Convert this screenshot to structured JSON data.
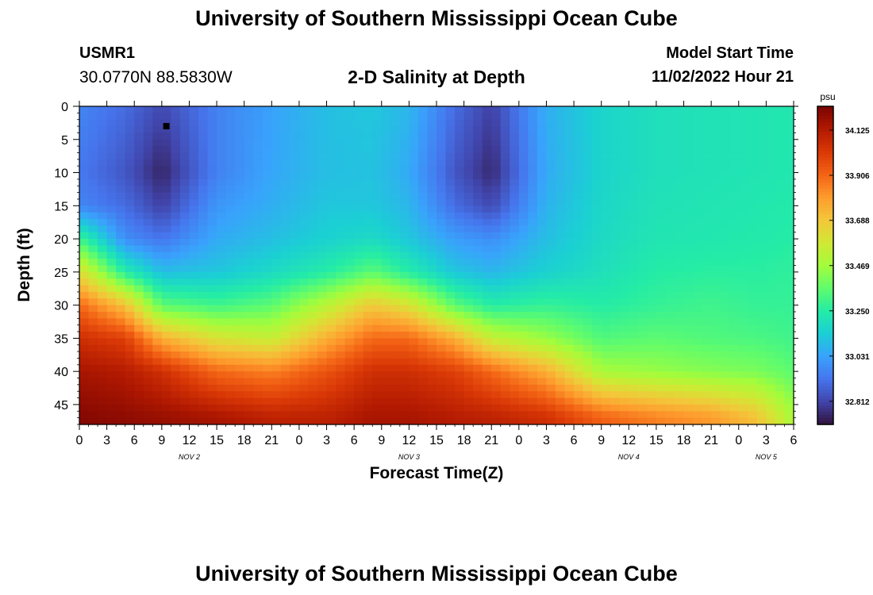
{
  "page": {
    "title": "University of Southern Mississippi Ocean Cube",
    "footer_title": "University of Southern Mississippi Ocean Cube",
    "station_id": "USMR1",
    "coordinates": "30.0770N  88.5830W",
    "subtitle": "2-D Salinity at Depth",
    "model_start_label": "Model Start Time",
    "model_start_value": "11/02/2022 Hour 21"
  },
  "chart_data": {
    "type": "heatmap",
    "title": "2-D Salinity at Depth",
    "xlabel": "Forecast Time(Z)",
    "ylabel": "Depth (ft)",
    "x_unit": "hours since 11/02/2022 00Z",
    "x_range": [
      0,
      78
    ],
    "x_tick_labels": [
      "0",
      "3",
      "6",
      "9",
      "12",
      "15",
      "18",
      "21",
      "0",
      "3",
      "6",
      "9",
      "12",
      "15",
      "18",
      "21",
      "0",
      "3",
      "6",
      "9",
      "12",
      "15",
      "18",
      "21",
      "0",
      "3",
      "6"
    ],
    "date_labels": [
      {
        "label": "NOV 2",
        "at": "11/02/2022 12Z"
      },
      {
        "label": "NOV 3",
        "at": "11/03/2022 12Z"
      },
      {
        "label": "NOV 4",
        "at": "11/04/2022 12Z"
      },
      {
        "label": "NOV 5",
        "at": "11/05/2022 03Z"
      }
    ],
    "y_range": [
      0,
      48
    ],
    "y_reversed": true,
    "y_ticks": [
      0,
      5,
      10,
      15,
      20,
      25,
      30,
      35,
      40,
      45
    ],
    "colorbar": {
      "unit": "psu",
      "min": 32.7,
      "max": 34.24,
      "ticks": [
        "34.125",
        "33.906",
        "33.688",
        "33.469",
        "33.250",
        "33.031",
        "32.812"
      ]
    },
    "marker": {
      "x": 9.5,
      "y": 3
    },
    "salinity_profiles": [
      {
        "x": 0,
        "depth": [
          0,
          10,
          15,
          20,
          25,
          30,
          35,
          40,
          47
        ],
        "psu": [
          32.96,
          32.93,
          32.96,
          33.3,
          33.62,
          33.9,
          34.05,
          34.15,
          34.22
        ]
      },
      {
        "x": 5,
        "depth": [
          0,
          10,
          15,
          20,
          25,
          30,
          35,
          40,
          47
        ],
        "psu": [
          32.9,
          32.85,
          32.9,
          32.98,
          33.25,
          33.7,
          34.0,
          34.12,
          34.2
        ]
      },
      {
        "x": 9,
        "depth": [
          0,
          10,
          15,
          20,
          25,
          30,
          35,
          40,
          47
        ],
        "psu": [
          32.82,
          32.74,
          32.8,
          32.92,
          33.1,
          33.35,
          33.75,
          34.05,
          34.18
        ]
      },
      {
        "x": 15,
        "depth": [
          0,
          10,
          15,
          20,
          25,
          30,
          35,
          40,
          47
        ],
        "psu": [
          32.95,
          32.95,
          33.0,
          33.05,
          33.12,
          33.3,
          33.6,
          33.9,
          34.15
        ]
      },
      {
        "x": 21,
        "depth": [
          0,
          10,
          15,
          20,
          25,
          30,
          35,
          40,
          47
        ],
        "psu": [
          33.03,
          33.04,
          33.06,
          33.1,
          33.18,
          33.35,
          33.55,
          33.85,
          34.1
        ]
      },
      {
        "x": 27,
        "depth": [
          0,
          10,
          15,
          20,
          25,
          30,
          35,
          40,
          47
        ],
        "psu": [
          33.1,
          33.1,
          33.12,
          33.15,
          33.25,
          33.52,
          33.75,
          33.95,
          34.1
        ]
      },
      {
        "x": 32,
        "depth": [
          0,
          10,
          15,
          20,
          25,
          30,
          35,
          40,
          47
        ],
        "psu": [
          33.12,
          33.11,
          33.12,
          33.18,
          33.35,
          33.68,
          33.9,
          34.05,
          34.15
        ]
      },
      {
        "x": 36,
        "depth": [
          0,
          10,
          15,
          20,
          25,
          30,
          35,
          40,
          47
        ],
        "psu": [
          33.08,
          33.05,
          33.08,
          33.12,
          33.25,
          33.6,
          33.9,
          34.05,
          34.15
        ]
      },
      {
        "x": 41,
        "depth": [
          0,
          10,
          15,
          20,
          25,
          30,
          35,
          40,
          47
        ],
        "psu": [
          32.9,
          32.85,
          32.9,
          33.02,
          33.12,
          33.35,
          33.75,
          34.0,
          34.12
        ]
      },
      {
        "x": 45,
        "depth": [
          0,
          10,
          15,
          20,
          25,
          30,
          35,
          40,
          47
        ],
        "psu": [
          32.8,
          32.75,
          32.82,
          32.98,
          33.08,
          33.25,
          33.55,
          33.9,
          34.1
        ]
      },
      {
        "x": 51,
        "depth": [
          0,
          10,
          15,
          20,
          25,
          30,
          35,
          40,
          47
        ],
        "psu": [
          33.06,
          33.05,
          33.07,
          33.1,
          33.15,
          33.28,
          33.45,
          33.75,
          34.05
        ]
      },
      {
        "x": 57,
        "depth": [
          0,
          10,
          15,
          20,
          25,
          30,
          35,
          40,
          47
        ],
        "psu": [
          33.16,
          33.16,
          33.17,
          33.18,
          33.2,
          33.25,
          33.33,
          33.48,
          33.92
        ]
      },
      {
        "x": 63,
        "depth": [
          0,
          10,
          15,
          20,
          25,
          30,
          35,
          40,
          47
        ],
        "psu": [
          33.2,
          33.2,
          33.21,
          33.22,
          33.25,
          33.28,
          33.35,
          33.45,
          33.85
        ]
      },
      {
        "x": 69,
        "depth": [
          0,
          10,
          15,
          20,
          25,
          30,
          35,
          40,
          47
        ],
        "psu": [
          33.21,
          33.21,
          33.22,
          33.23,
          33.26,
          33.3,
          33.33,
          33.42,
          33.8
        ]
      },
      {
        "x": 74,
        "depth": [
          0,
          10,
          15,
          20,
          25,
          30,
          35,
          40,
          47
        ],
        "psu": [
          33.22,
          33.22,
          33.23,
          33.24,
          33.26,
          33.28,
          33.32,
          33.4,
          33.7
        ]
      },
      {
        "x": 78,
        "depth": [
          0,
          10,
          15,
          20,
          25,
          30,
          35,
          40,
          47
        ],
        "psu": [
          33.23,
          33.23,
          33.24,
          33.25,
          33.27,
          33.28,
          33.3,
          33.35,
          33.48
        ]
      }
    ]
  },
  "colors": {
    "colormap": [
      "#30123b",
      "#4145ab",
      "#4675ed",
      "#39a2fc",
      "#1bcfd4",
      "#24eca6",
      "#61fc6c",
      "#a4fc3b",
      "#d1e834",
      "#f3c63a",
      "#fe9b2d",
      "#f36315",
      "#d93806",
      "#b11901",
      "#7a0402"
    ]
  }
}
